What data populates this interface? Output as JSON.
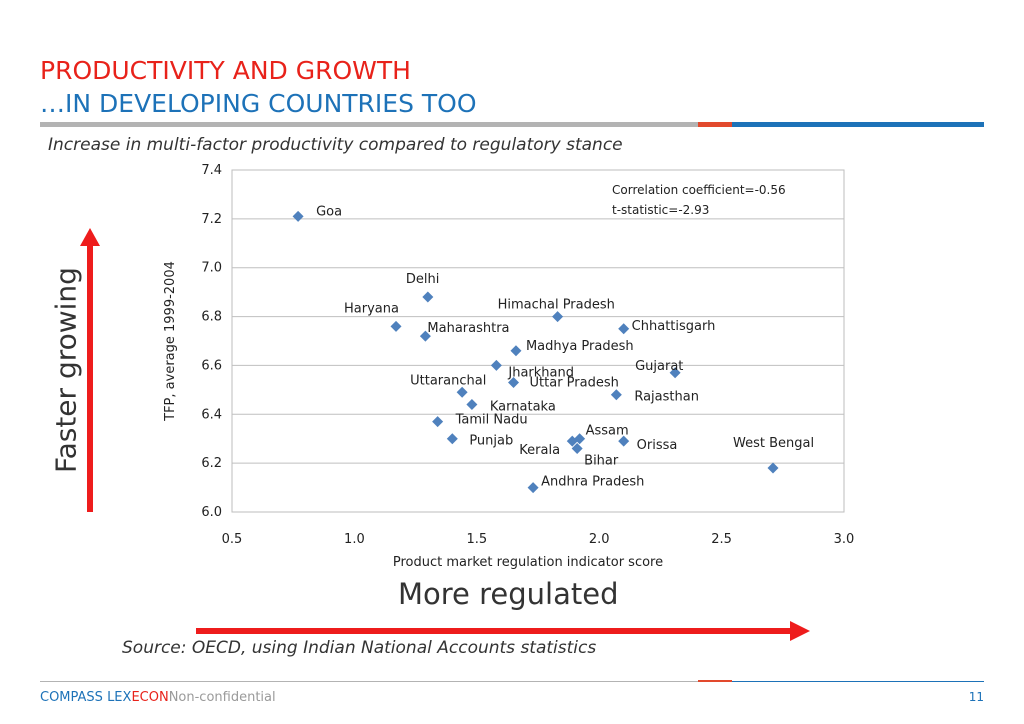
{
  "header": {
    "title_line1": "PRODUCTIVITY AND GROWTH",
    "title_line2": "…IN DEVELOPING COUNTRIES TOO",
    "subtitle": "Increase in multi-factor productivity compared to regulatory stance"
  },
  "annotations": {
    "faster_growing": "Faster growing",
    "more_regulated": "More regulated",
    "source": "Source: OECD, using Indian National Accounts statistics"
  },
  "footer": {
    "brand_part1": "COMPASS LEX",
    "brand_part2": "ECON",
    "confidentiality": "Non-confidential",
    "page_number": "11"
  },
  "colors": {
    "title_red": "#e8221a",
    "title_blue": "#1d72b8",
    "marker": "#4f81bd",
    "arrow": "#ee1c1c"
  },
  "chart_data": {
    "type": "scatter",
    "xlabel": "Product market regulation indicator score",
    "ylabel": "TFP, average 1999-2004",
    "xlim": [
      0.5,
      3.0
    ],
    "ylim": [
      6.0,
      7.4
    ],
    "xticks": [
      "0.5",
      "1.0",
      "1.5",
      "2.0",
      "2.5",
      "3.0"
    ],
    "yticks": [
      "6.0",
      "6.2",
      "6.4",
      "6.6",
      "6.8",
      "7.0",
      "7.2",
      "7.4"
    ],
    "grid": "horizontal",
    "stats": [
      "Correlation coefficient=-0.56",
      "t-statistic=-2.93"
    ],
    "points": [
      {
        "label": "Goa",
        "x": 0.77,
        "y": 7.21
      },
      {
        "label": "Delhi",
        "x": 1.3,
        "y": 6.88
      },
      {
        "label": "Haryana",
        "x": 1.17,
        "y": 6.76
      },
      {
        "label": "Maharashtra",
        "x": 1.29,
        "y": 6.72
      },
      {
        "label": "Himachal Pradesh",
        "x": 1.83,
        "y": 6.8
      },
      {
        "label": "Chhattisgarh",
        "x": 2.1,
        "y": 6.75
      },
      {
        "label": "Madhya Pradesh",
        "x": 1.66,
        "y": 6.66
      },
      {
        "label": "Jharkhand",
        "x": 1.58,
        "y": 6.6
      },
      {
        "label": "Gujarat",
        "x": 2.31,
        "y": 6.57
      },
      {
        "label": "Uttaranchal",
        "x": 1.44,
        "y": 6.49
      },
      {
        "label": "Uttar Pradesh",
        "x": 1.65,
        "y": 6.53
      },
      {
        "label": "Rajasthan",
        "x": 2.07,
        "y": 6.48
      },
      {
        "label": "Karnataka",
        "x": 1.48,
        "y": 6.44
      },
      {
        "label": "Tamil Nadu",
        "x": 1.34,
        "y": 6.37
      },
      {
        "label": "Punjab",
        "x": 1.4,
        "y": 6.3
      },
      {
        "label": "Assam",
        "x": 1.92,
        "y": 6.3
      },
      {
        "label": "Kerala",
        "x": 1.89,
        "y": 6.29
      },
      {
        "label": "Bihar",
        "x": 1.91,
        "y": 6.26
      },
      {
        "label": "Orissa",
        "x": 2.1,
        "y": 6.29
      },
      {
        "label": "West Bengal",
        "x": 2.71,
        "y": 6.18
      },
      {
        "label": "Andhra Pradesh",
        "x": 1.73,
        "y": 6.1
      }
    ]
  }
}
